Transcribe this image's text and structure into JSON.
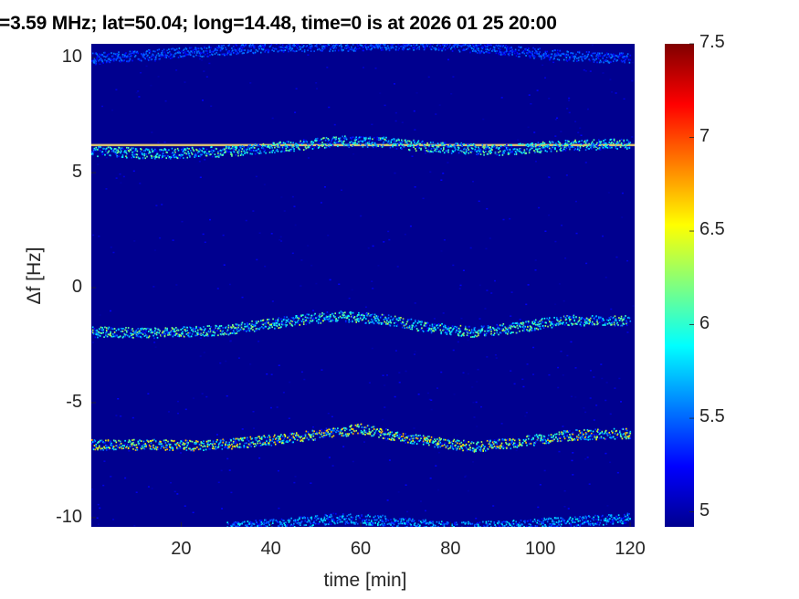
{
  "chart_data": {
    "type": "heatmap",
    "title": "=3.59 MHz;  lat=50.04; long=14.48, time=0 is at 2026 01 25 20:00",
    "xlabel": "time [min]",
    "ylabel": "Δf [Hz]",
    "xlim": [
      0,
      121
    ],
    "ylim": [
      -10.4,
      10.6
    ],
    "xticks": [
      "20",
      "40",
      "60",
      "80",
      "100",
      "120"
    ],
    "xtick_values": [
      20,
      40,
      60,
      80,
      100,
      120
    ],
    "yticks": [
      "10",
      "5",
      "0",
      "-5",
      "-10"
    ],
    "ytick_values": [
      10,
      5,
      0,
      -5,
      -10
    ],
    "colormap": "jet",
    "clim": [
      4.92,
      7.5
    ],
    "colorbar_ticks": [
      "7.5",
      "7",
      "6.5",
      "6",
      "5.5",
      "5"
    ],
    "colorbar_tick_values": [
      7.5,
      7,
      6.5,
      6,
      5.5,
      5
    ],
    "background_value": 4.95,
    "traces": [
      {
        "name": "carrier-line",
        "peak": 6.9,
        "t": [
          0,
          120
        ],
        "f": [
          6.2,
          6.2
        ]
      },
      {
        "name": "trace-plus6",
        "peak": 6.3,
        "t": [
          0,
          15,
          30,
          45,
          55,
          65,
          75,
          90,
          105,
          120
        ],
        "f": [
          5.95,
          5.85,
          5.95,
          6.2,
          6.4,
          6.35,
          6.15,
          6.0,
          6.2,
          6.3
        ]
      },
      {
        "name": "trace-minus2",
        "peak": 6.4,
        "t": [
          0,
          15,
          30,
          45,
          55,
          65,
          75,
          85,
          95,
          105,
          120
        ],
        "f": [
          -1.9,
          -1.95,
          -1.8,
          -1.4,
          -1.2,
          -1.35,
          -1.7,
          -1.9,
          -1.7,
          -1.4,
          -1.4
        ]
      },
      {
        "name": "trace-minus7",
        "peak": 6.8,
        "t": [
          0,
          15,
          25,
          40,
          55,
          60,
          70,
          85,
          95,
          105,
          120
        ],
        "f": [
          -6.8,
          -6.8,
          -6.85,
          -6.6,
          -6.25,
          -6.1,
          -6.5,
          -6.9,
          -6.7,
          -6.4,
          -6.3
        ]
      },
      {
        "name": "trace-minus10",
        "peak": 5.9,
        "t": [
          30,
          45,
          55,
          65,
          80,
          95,
          105,
          120
        ],
        "f": [
          -10.4,
          -10.2,
          -10.0,
          -10.1,
          -10.4,
          -10.3,
          -10.15,
          -10.0
        ]
      },
      {
        "name": "trace-plus10",
        "peak": 5.6,
        "t": [
          0,
          10,
          25,
          40,
          60,
          75,
          90,
          105,
          120
        ],
        "f": [
          10.0,
          10.1,
          10.3,
          10.5,
          10.55,
          10.6,
          10.4,
          10.1,
          10.0
        ]
      }
    ]
  }
}
